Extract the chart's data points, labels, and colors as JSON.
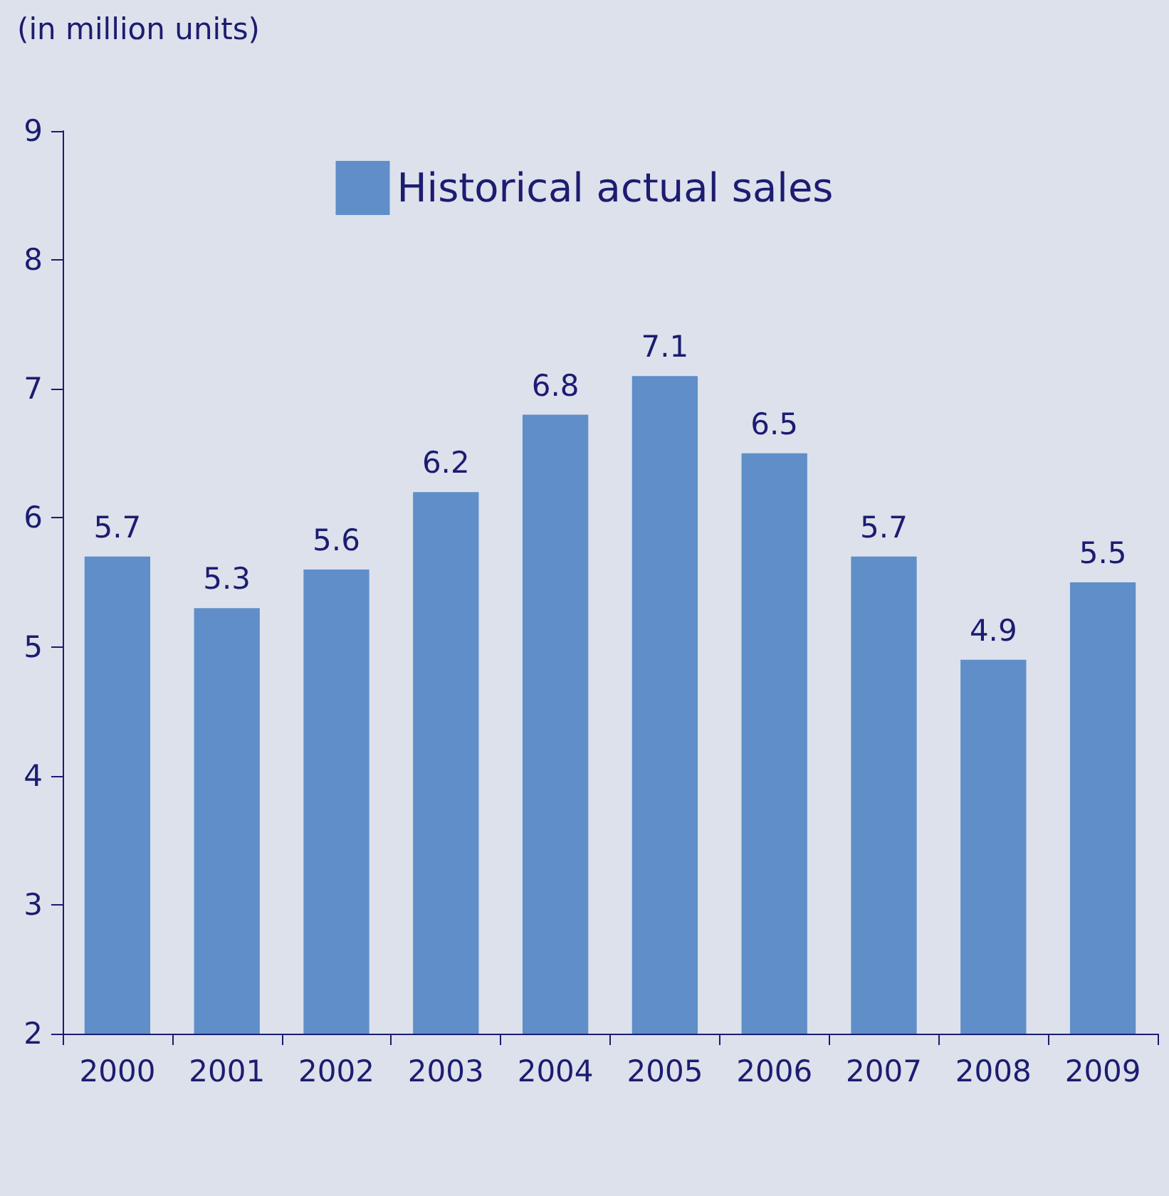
{
  "chart_data": {
    "type": "bar",
    "ylabel": "(in million units)",
    "categories": [
      "2000",
      "2001",
      "2002",
      "2003",
      "2004",
      "2005",
      "2006",
      "2007",
      "2008",
      "2009"
    ],
    "series": [
      {
        "name": "Historical actual sales",
        "color": "#5f8ec8",
        "values": [
          5.7,
          5.3,
          5.6,
          6.2,
          6.8,
          7.1,
          6.5,
          5.7,
          4.9,
          5.5
        ]
      }
    ],
    "ylim": [
      2,
      9
    ],
    "yticks": [
      2,
      3,
      4,
      5,
      6,
      7,
      8,
      9
    ],
    "grid": false,
    "legend": "top",
    "data_labels": true
  }
}
